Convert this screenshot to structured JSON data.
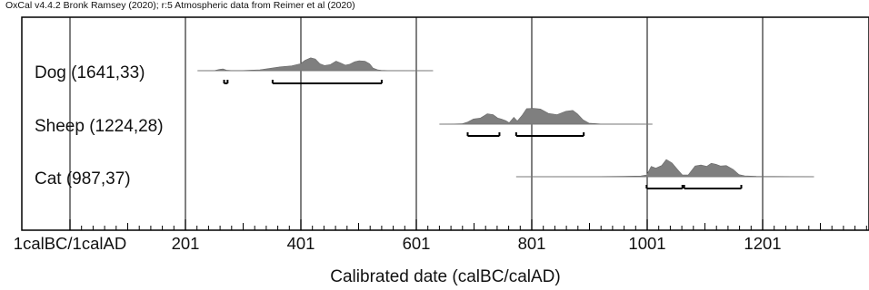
{
  "header": {
    "caption": "OxCal v4.4.2 Bronk Ramsey (2020); r:5 Atmospheric data from Reimer et al (2020)"
  },
  "chart_data": {
    "type": "area",
    "title": "",
    "xlabel": "Calibrated date (calBC/calAD)",
    "ylabel": "",
    "xlim": [
      1,
      1400
    ],
    "grid": true,
    "tick_labels": [
      "1calBC/1calAD",
      "201",
      "401",
      "601",
      "801",
      "1001",
      "1201"
    ],
    "tick_values": [
      1,
      201,
      401,
      601,
      801,
      1001,
      1201
    ],
    "series": [
      {
        "name": "Dog (1641,33)",
        "x": [
          222,
          252,
          260,
          266,
          272,
          280,
          300,
          330,
          350,
          365,
          385,
          400,
          408,
          418,
          426,
          434,
          442,
          452,
          462,
          470,
          478,
          486,
          494,
          502,
          512,
          520,
          526,
          534,
          540,
          550,
          570,
          630
        ],
        "density": [
          0,
          0.01,
          0.08,
          0.1,
          0.03,
          0.01,
          0.01,
          0.05,
          0.15,
          0.22,
          0.28,
          0.4,
          0.6,
          0.75,
          0.68,
          0.4,
          0.3,
          0.35,
          0.55,
          0.45,
          0.32,
          0.38,
          0.52,
          0.58,
          0.55,
          0.4,
          0.15,
          0.05,
          0.02,
          0.01,
          0.005,
          0
        ],
        "hpd_ranges": [
          [
            268,
            274
          ],
          [
            352,
            541
          ]
        ]
      },
      {
        "name": "Sheep (1224,28)",
        "x": [
          641,
          660,
          680,
          690,
          700,
          712,
          724,
          734,
          742,
          748,
          756,
          762,
          770,
          776,
          784,
          792,
          804,
          816,
          830,
          845,
          860,
          872,
          880,
          890,
          900,
          920,
          1010
        ],
        "density": [
          0,
          0.005,
          0.02,
          0.12,
          0.3,
          0.35,
          0.6,
          0.55,
          0.35,
          0.3,
          0.2,
          0.08,
          0.4,
          0.18,
          0.5,
          0.9,
          0.92,
          0.88,
          0.62,
          0.55,
          0.75,
          0.8,
          0.6,
          0.25,
          0.06,
          0.01,
          0
        ],
        "hpd_ranges": [
          [
            690,
            745
          ],
          [
            774,
            891
          ]
        ]
      },
      {
        "name": "Cat (987,37)",
        "x": [
          774,
          900,
          960,
          990,
          1000,
          1008,
          1016,
          1026,
          1034,
          1044,
          1054,
          1062,
          1072,
          1084,
          1094,
          1104,
          1112,
          1120,
          1128,
          1138,
          1150,
          1160,
          1170,
          1190,
          1290
        ],
        "density": [
          0,
          0.005,
          0.02,
          0.04,
          0.1,
          0.6,
          0.5,
          0.65,
          1.0,
          0.8,
          0.4,
          0.1,
          0.1,
          0.62,
          0.68,
          0.6,
          0.78,
          0.72,
          0.62,
          0.65,
          0.42,
          0.12,
          0.05,
          0.02,
          0
        ],
        "hpd_ranges": [
          [
            1000,
            1062
          ],
          [
            1065,
            1164
          ]
        ]
      }
    ]
  }
}
